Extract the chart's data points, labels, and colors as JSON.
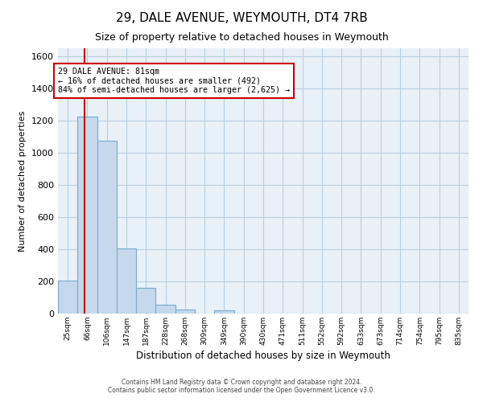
{
  "title": "29, DALE AVENUE, WEYMOUTH, DT4 7RB",
  "subtitle": "Size of property relative to detached houses in Weymouth",
  "xlabel": "Distribution of detached houses by size in Weymouth",
  "ylabel": "Number of detached properties",
  "bin_labels": [
    "25sqm",
    "66sqm",
    "106sqm",
    "147sqm",
    "187sqm",
    "228sqm",
    "268sqm",
    "309sqm",
    "349sqm",
    "390sqm",
    "430sqm",
    "471sqm",
    "511sqm",
    "552sqm",
    "592sqm",
    "633sqm",
    "673sqm",
    "714sqm",
    "754sqm",
    "795sqm",
    "835sqm"
  ],
  "bar_heights": [
    205,
    1225,
    1075,
    405,
    160,
    55,
    25,
    0,
    20,
    0,
    0,
    0,
    0,
    0,
    0,
    0,
    0,
    0,
    0,
    0,
    0
  ],
  "bar_color": "#c5d8ec",
  "bar_edge_color": "#7aaacb",
  "property_line_color": "#cc0000",
  "annotation_text": "29 DALE AVENUE: 81sqm\n← 16% of detached houses are smaller (492)\n84% of semi-detached houses are larger (2,625) →",
  "annotation_box_color": "#ffffff",
  "annotation_box_edge": "#cc0000",
  "ylim": [
    0,
    1650
  ],
  "yticks": [
    0,
    200,
    400,
    600,
    800,
    1000,
    1200,
    1400,
    1600
  ],
  "chart_bg_color": "#e8f0f8",
  "footer_line1": "Contains HM Land Registry data © Crown copyright and database right 2024.",
  "footer_line2": "Contains public sector information licensed under the Open Government Licence v3.0.",
  "background_color": "#ffffff",
  "grid_color": "#b8cfe0"
}
